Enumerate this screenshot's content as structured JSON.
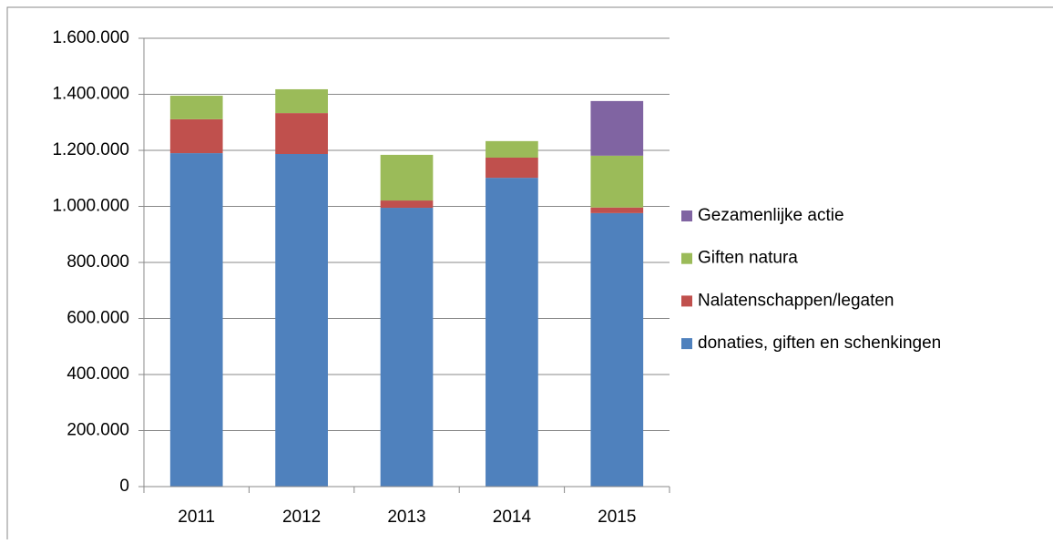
{
  "chart_data": {
    "type": "stacked_bar",
    "categories": [
      "2011",
      "2012",
      "2013",
      "2014",
      "2015"
    ],
    "series": [
      {
        "name": "donaties, giften en schenkingen",
        "color": "#4f81bd",
        "values": [
          1190000,
          1187000,
          995000,
          1102000,
          976000
        ]
      },
      {
        "name": "Nalatenschappen/legaten",
        "color": "#c0504d",
        "values": [
          121000,
          146000,
          26000,
          72000,
          20000
        ]
      },
      {
        "name": "Giften natura",
        "color": "#9bbb59",
        "values": [
          84000,
          85000,
          163000,
          59000,
          185000
        ]
      },
      {
        "name": "Gezamenlijke actie",
        "color": "#8064a2",
        "values": [
          null,
          null,
          null,
          null,
          195000
        ]
      }
    ],
    "ylim": [
      0,
      1600000
    ],
    "yticks": [
      0,
      {
        "value": 200000,
        "label": "200.000"
      },
      {
        "value": 400000,
        "label": "400.000"
      },
      {
        "value": 600000,
        "label": "600.000"
      },
      {
        "value": 800000,
        "label": "800.000"
      },
      {
        "value": 1000000,
        "label": "1.000.000"
      },
      {
        "value": 1200000,
        "label": "1.200.000"
      },
      {
        "value": 1400000,
        "label": "1.400.000"
      },
      {
        "value": 1600000,
        "label": "1.600.000"
      }
    ],
    "grid": true,
    "legend": "right"
  }
}
